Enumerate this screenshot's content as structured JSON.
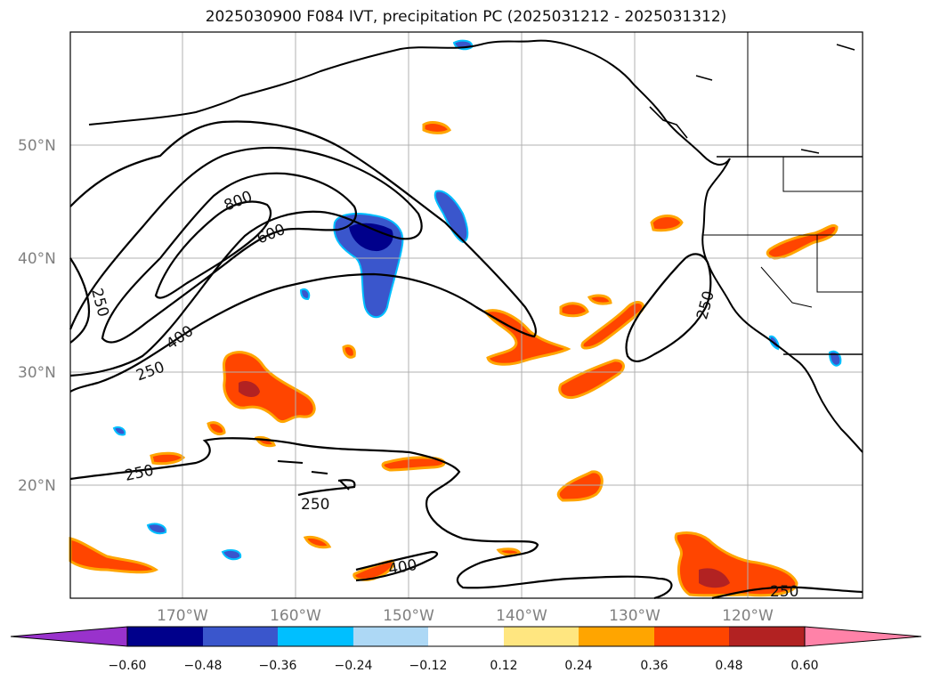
{
  "title": "2025030900 F084 IVT, precipitation PC (2025031212 - 2025031312)",
  "latitude_labels": [
    "50°N",
    "40°N",
    "30°N",
    "20°N"
  ],
  "longitude_labels": [
    "170°W",
    "160°W",
    "150°W",
    "140°W",
    "130°W",
    "120°W"
  ],
  "contour_labels": [
    "800",
    "600",
    "400",
    "250",
    "250",
    "250",
    "250",
    "250",
    "250",
    "400",
    "250"
  ],
  "colorbar": {
    "tick_labels": [
      "−0.60",
      "−0.48",
      "−0.36",
      "−0.24",
      "−0.12",
      "0.12",
      "0.24",
      "0.36",
      "0.48",
      "0.60"
    ],
    "colors": [
      "#9932cc",
      "#00008b",
      "#3a56cc",
      "#00bfff",
      "#add8f5",
      "#ffffff",
      "#ffe680",
      "#ffa500",
      "#ff4500",
      "#b22222",
      "#ff82a8"
    ]
  },
  "colors": {
    "contour": "#000000",
    "coastline": "#000000",
    "grid": "#b0b0b0"
  }
}
